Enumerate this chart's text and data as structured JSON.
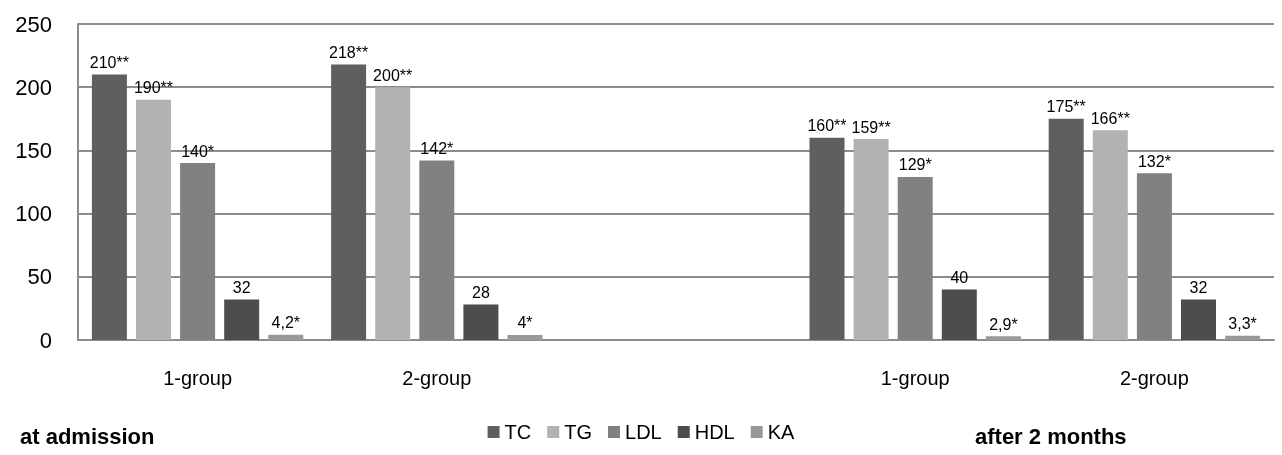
{
  "chart_data": {
    "type": "bar",
    "categories": [
      "1-group",
      "2-group",
      null,
      "1-group",
      "2-group"
    ],
    "series": [
      {
        "name": "TC",
        "color": "#5f5f5f",
        "values": [
          210,
          218,
          null,
          160,
          175
        ],
        "value_labels": [
          "210**",
          "218**",
          null,
          "160**",
          "175**"
        ]
      },
      {
        "name": "TG",
        "color": "#b2b2b2",
        "values": [
          190,
          200,
          null,
          159,
          166
        ],
        "value_labels": [
          "190**",
          "200**",
          null,
          "159**",
          "166**"
        ]
      },
      {
        "name": "LDL",
        "color": "#818181",
        "values": [
          140,
          142,
          null,
          129,
          132
        ],
        "value_labels": [
          "140*",
          "142*",
          null,
          "129*",
          "132*"
        ]
      },
      {
        "name": "HDL",
        "color": "#4d4d4d",
        "values": [
          32,
          28,
          null,
          40,
          32
        ],
        "value_labels": [
          "32",
          "28",
          null,
          "40",
          "32"
        ]
      },
      {
        "name": "KA",
        "color": "#999999",
        "values": [
          4.2,
          4,
          null,
          2.9,
          3.3
        ],
        "value_labels": [
          "4,2*",
          "4*",
          null,
          "2,9*",
          "3,3*"
        ]
      }
    ],
    "ylim": [
      0,
      250
    ],
    "yticks": [
      0,
      50,
      100,
      150,
      200,
      250
    ],
    "grid": "y",
    "legend": "bottom",
    "annotations": [
      "at admission",
      "after 2 months"
    ]
  }
}
